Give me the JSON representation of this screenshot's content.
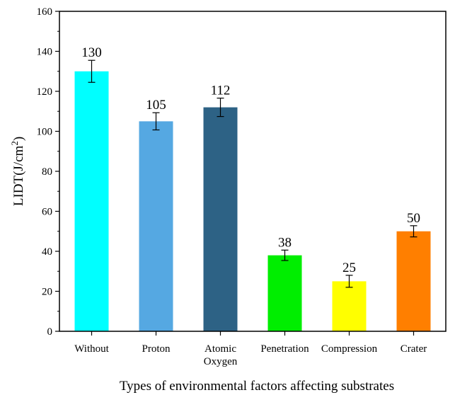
{
  "chart_data": {
    "type": "bar",
    "categories": [
      [
        "Without"
      ],
      [
        "Proton"
      ],
      [
        "Atomic",
        "Oxygen"
      ],
      [
        "Penetration"
      ],
      [
        "Compression"
      ],
      [
        "Crater"
      ]
    ],
    "values": [
      130,
      105,
      112,
      38,
      25,
      50
    ],
    "errors": [
      5.5,
      4.3,
      4.6,
      2.6,
      3.0,
      2.8
    ],
    "data_labels": [
      "130",
      "105",
      "112",
      "38",
      "25",
      "50"
    ],
    "colors": [
      "#00ffff",
      "#55a8e2",
      "#2d6285",
      "#00ee00",
      "#ffff00",
      "#ff7f00"
    ],
    "xlabel": "Types of environmental factors affecting substrates",
    "ylabel_main": "LIDT(J/cm",
    "ylabel_sup": "2",
    "ylabel_end": ")",
    "ylim": [
      0,
      160
    ],
    "yticks": [
      0,
      20,
      40,
      60,
      80,
      100,
      120,
      140,
      160
    ],
    "grid": false,
    "legend": "none"
  }
}
